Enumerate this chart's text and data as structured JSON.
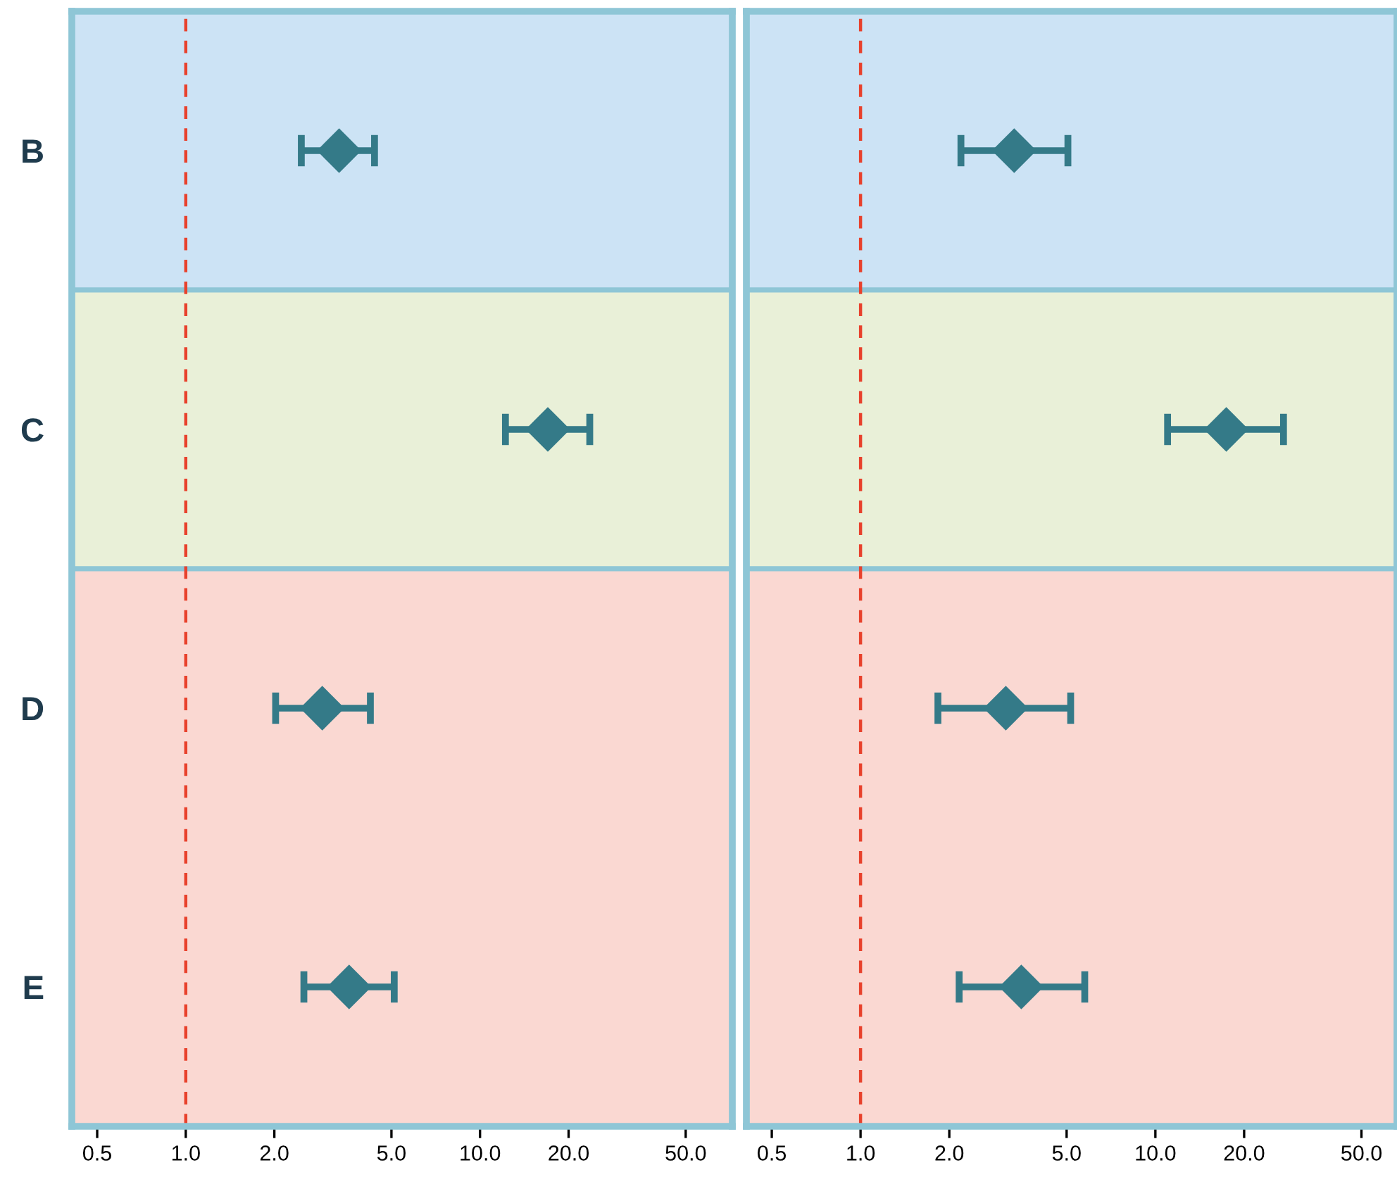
{
  "chart_data": [
    {
      "type": "scatter",
      "categories": [
        "B",
        "C",
        "D",
        "E"
      ],
      "orientation": "horizontal",
      "marker": "diamond",
      "color": "#347a88",
      "values": [
        3.32,
        17.0,
        2.91,
        3.59
      ],
      "errors": [
        [
          2.47,
          4.38
        ],
        [
          12.2,
          23.6
        ],
        [
          2.02,
          4.24
        ],
        [
          2.52,
          5.11
        ]
      ],
      "log": "x",
      "xlim": [
        0.41,
        72
      ],
      "xticks": [
        {
          "value": 0.5,
          "label": "0.5"
        },
        {
          "value": 1,
          "label": "1.0"
        },
        {
          "value": 2,
          "label": "2.0"
        },
        {
          "value": 5,
          "label": "5.0"
        },
        {
          "value": 10,
          "label": "10.0"
        },
        {
          "value": 20,
          "label": "20.0"
        },
        {
          "value": 50,
          "label": "50.0"
        }
      ],
      "ref_lines": [
        {
          "axis": "x",
          "value": 1,
          "color": "#e8412c",
          "line_style": "dashed"
        }
      ],
      "bands": [
        {
          "axis": "y",
          "from": "B",
          "to": "B",
          "color": "#cce3f5"
        },
        {
          "axis": "y",
          "from": "C",
          "to": "C",
          "color": "#e9f0d8"
        },
        {
          "axis": "y",
          "from": "D",
          "to": "E",
          "color": "#fad8d2"
        }
      ],
      "grid": false,
      "legend": false
    },
    {
      "type": "scatter",
      "categories": [
        "B",
        "C",
        "D",
        "E"
      ],
      "orientation": "horizontal",
      "marker": "diamond",
      "color": "#347a88",
      "values": [
        3.32,
        17.4,
        3.11,
        3.51
      ],
      "errors": [
        [
          2.19,
          5.05
        ],
        [
          11.0,
          27.2
        ],
        [
          1.83,
          5.16
        ],
        [
          2.16,
          5.76
        ]
      ],
      "log": "x",
      "xlim": [
        0.41,
        66
      ],
      "xticks": [
        {
          "value": 0.5,
          "label": "0.5"
        },
        {
          "value": 1,
          "label": "1.0"
        },
        {
          "value": 2,
          "label": "2.0"
        },
        {
          "value": 5,
          "label": "5.0"
        },
        {
          "value": 10,
          "label": "10.0"
        },
        {
          "value": 20,
          "label": "20.0"
        },
        {
          "value": 50,
          "label": "50.0"
        }
      ],
      "ref_lines": [
        {
          "axis": "x",
          "value": 1,
          "color": "#e8412c",
          "line_style": "dashed"
        }
      ],
      "bands": [
        {
          "axis": "y",
          "from": "B",
          "to": "B",
          "color": "#cce3f5"
        },
        {
          "axis": "y",
          "from": "C",
          "to": "C",
          "color": "#e9f0d8"
        },
        {
          "axis": "y",
          "from": "D",
          "to": "E",
          "color": "#fad8d2"
        }
      ],
      "grid": false,
      "legend": false,
      "tick_labels": "x"
    }
  ]
}
